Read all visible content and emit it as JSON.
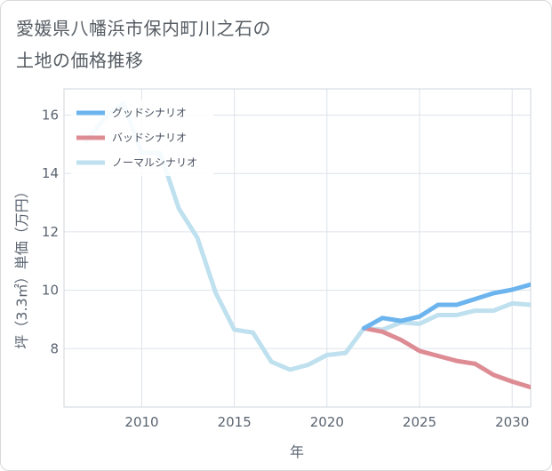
{
  "title": {
    "line1": "愛媛県八幡浜市保内町川之石の",
    "line2": "土地の価格推移"
  },
  "chart_data": {
    "type": "line",
    "xlabel": "年",
    "ylabel": "坪（3.3㎡）単価（万円）",
    "xlim": [
      2005.8,
      2031
    ],
    "ylim": [
      6.0,
      16.9
    ],
    "xticks": [
      2010,
      2015,
      2020,
      2025,
      2030
    ],
    "yticks": [
      8,
      10,
      12,
      14,
      16
    ],
    "grid": true,
    "legend_position": "top-left",
    "series": [
      {
        "name": "グッドシナリオ",
        "color": "#6cb4ee",
        "x": [
          2022,
          2023,
          2024,
          2025,
          2026,
          2027,
          2028,
          2029,
          2030,
          2031
        ],
        "y": [
          8.7,
          9.05,
          8.95,
          9.1,
          9.5,
          9.5,
          9.7,
          9.9,
          10.02,
          10.2
        ]
      },
      {
        "name": "バッドシナリオ",
        "color": "#de8c94",
        "x": [
          2022,
          2023,
          2024,
          2025,
          2026,
          2027,
          2028,
          2029,
          2030,
          2031
        ],
        "y": [
          8.7,
          8.58,
          8.3,
          7.92,
          7.75,
          7.58,
          7.48,
          7.1,
          6.87,
          6.68
        ]
      },
      {
        "name": "ノーマルシナリオ",
        "color": "#bfe0ee",
        "x": [
          2007,
          2008,
          2009,
          2010,
          2011,
          2012,
          2013,
          2014,
          2015,
          2016,
          2017,
          2018,
          2019,
          2020,
          2021,
          2022,
          2023,
          2024,
          2025,
          2026,
          2027,
          2028,
          2029,
          2030,
          2031
        ],
        "y": [
          15.1,
          15.9,
          16.4,
          14.7,
          14.7,
          12.8,
          11.8,
          9.9,
          8.65,
          8.55,
          7.55,
          7.28,
          7.45,
          7.78,
          7.85,
          8.7,
          8.65,
          8.9,
          8.85,
          9.15,
          9.15,
          9.3,
          9.3,
          9.55,
          9.5
        ]
      }
    ]
  }
}
